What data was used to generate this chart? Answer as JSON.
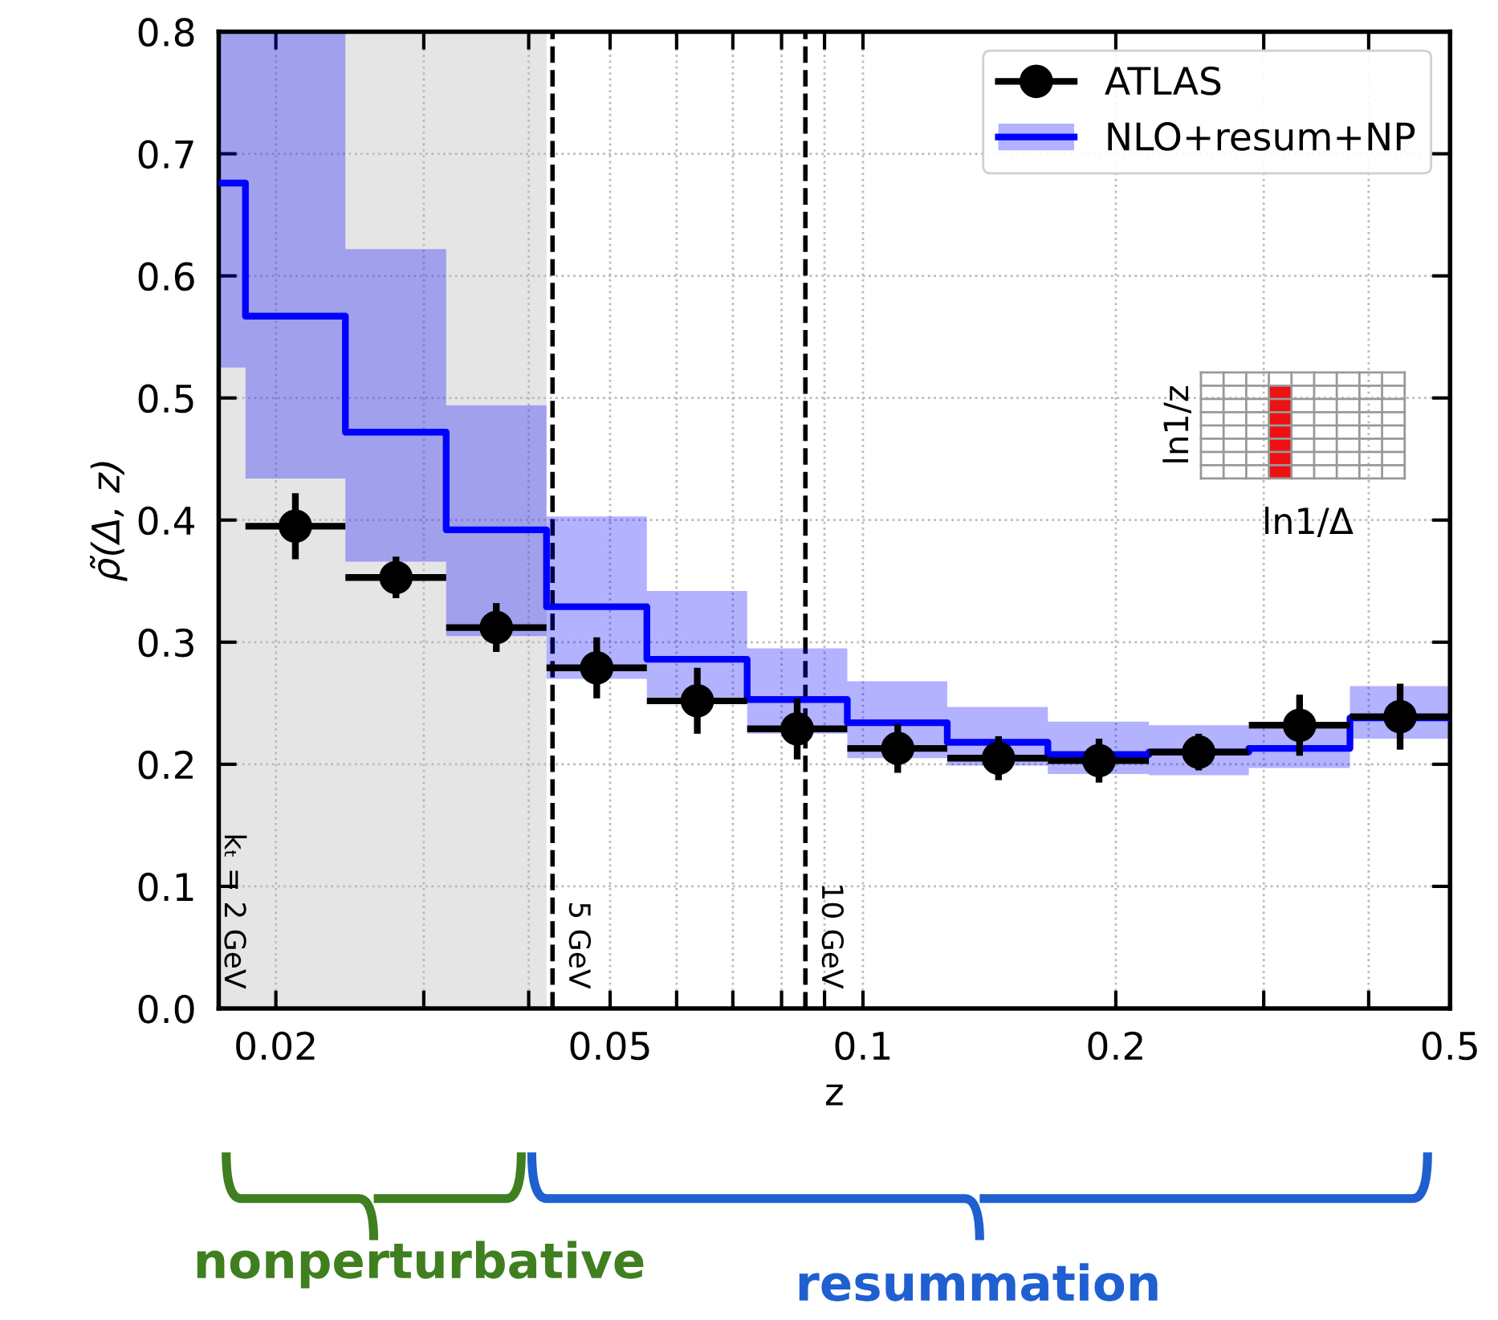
{
  "chart_data": {
    "type": "scatter",
    "xlabel": "z",
    "ylabel": "ρ̃(Δ, z)",
    "log": "x",
    "xlim": [
      0.0171,
      0.5
    ],
    "ylim": [
      0,
      0.8
    ],
    "xticks": [
      {
        "value": 0.02,
        "label": "0.02"
      },
      {
        "value": 0.03,
        "label": null
      },
      {
        "value": 0.04,
        "label": null
      },
      {
        "value": 0.05,
        "label": "0.05"
      },
      {
        "value": 0.06,
        "label": null
      },
      {
        "value": 0.07,
        "label": null
      },
      {
        "value": 0.08,
        "label": null
      },
      {
        "value": 0.09,
        "label": null
      },
      {
        "value": 0.1,
        "label": "0.1"
      },
      {
        "value": 0.2,
        "label": "0.2"
      },
      {
        "value": 0.3,
        "label": null
      },
      {
        "value": 0.4,
        "label": null
      },
      {
        "value": 0.5,
        "label": "0.5"
      }
    ],
    "yticks": [
      {
        "value": 0,
        "label": "0.0"
      },
      {
        "value": 0.1,
        "label": "0.1"
      },
      {
        "value": 0.2,
        "label": "0.2"
      },
      {
        "value": 0.3,
        "label": "0.3"
      },
      {
        "value": 0.4,
        "label": "0.4"
      },
      {
        "value": 0.5,
        "label": "0.5"
      },
      {
        "value": 0.6,
        "label": "0.6"
      },
      {
        "value": 0.7,
        "label": "0.7"
      },
      {
        "value": 0.8,
        "label": "0.8"
      }
    ],
    "grid": true,
    "legend": "top right",
    "marker": "circle",
    "series": [
      {
        "name": "ATLAS",
        "color": "#000000",
        "x": [
          0.0211,
          0.0278,
          0.0366,
          0.0482,
          0.0635,
          0.0835,
          0.11,
          0.145,
          0.191,
          0.251,
          0.331,
          0.436
        ],
        "values": [
          0.395,
          0.353,
          0.312,
          0.279,
          0.252,
          0.229,
          0.213,
          0.205,
          0.203,
          0.21,
          0.232,
          0.239
        ],
        "errors": [
          0.027,
          0.017,
          0.02,
          0.025,
          0.027,
          0.025,
          0.02,
          0.018,
          0.018,
          0.015,
          0.025,
          0.027
        ],
        "xerrors": [
          [
            0.0184,
            0.0242
          ],
          [
            0.0242,
            0.0319
          ],
          [
            0.0319,
            0.042
          ],
          [
            0.042,
            0.0553
          ],
          [
            0.0553,
            0.0728
          ],
          [
            0.0728,
            0.0958
          ],
          [
            0.0958,
            0.126
          ],
          [
            0.126,
            0.166
          ],
          [
            0.166,
            0.219
          ],
          [
            0.219,
            0.288
          ],
          [
            0.288,
            0.38
          ],
          [
            0.38,
            0.5
          ]
        ]
      },
      {
        "name": "NLO+resum+NP",
        "type": "step",
        "color": "#0000ff",
        "marker": "none",
        "x": [
          0.0171,
          0.0184,
          0.0242,
          0.0319,
          0.042,
          0.0553,
          0.0728,
          0.0958,
          0.126,
          0.166,
          0.219,
          0.288,
          0.38,
          0.5
        ],
        "values": [
          0.676,
          0.567,
          0.472,
          0.392,
          0.329,
          0.286,
          0.253,
          0.234,
          0.218,
          0.208,
          0.21,
          0.213,
          0.238,
          0.238
        ],
        "lower": [
          0.525,
          0.434,
          0.366,
          0.305,
          0.27,
          0.255,
          0.225,
          0.205,
          0.199,
          0.192,
          0.191,
          0.197,
          0.221,
          0.221
        ],
        "upper": [
          0.8,
          0.8,
          0.622,
          0.494,
          0.403,
          0.342,
          0.295,
          0.268,
          0.247,
          0.235,
          0.232,
          0.229,
          0.264,
          0.264
        ]
      }
    ],
    "bands": [
      {
        "axis": "x",
        "from": 0.0171,
        "to": 0.042,
        "label": "kₜ = 2 GeV",
        "color": "#e5e5e5"
      }
    ],
    "ref_lines": [
      {
        "axis": "x",
        "value": 0.0427,
        "label": "5 GeV",
        "line_style": "dashed"
      },
      {
        "axis": "x",
        "value": 0.0854,
        "label": "10 GeV",
        "line_style": "dashed"
      }
    ],
    "annotations": [
      "ln1/z",
      "ln1/Δ",
      "nonperturbative",
      "resummation"
    ]
  }
}
